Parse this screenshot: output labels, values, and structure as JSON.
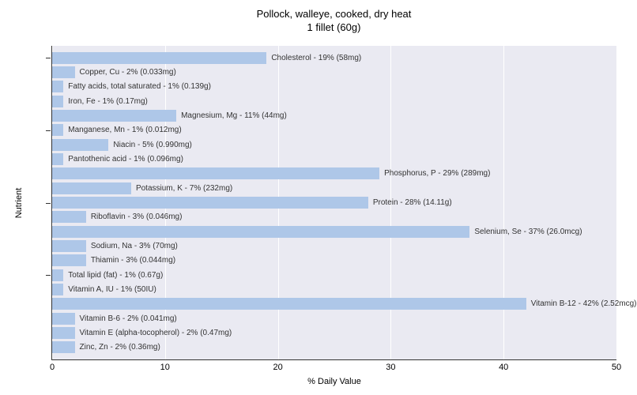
{
  "chart": {
    "type": "bar-horizontal",
    "title_line1": "Pollock, walleye, cooked, dry heat",
    "title_line2": "1 fillet (60g)",
    "title_fontsize": 13,
    "y_axis_label": "Nutrient",
    "x_axis_label": "% Daily Value",
    "axis_label_fontsize": 11,
    "tick_fontsize": 11,
    "bar_label_fontsize": 10,
    "bar_color": "#aec7e8",
    "plot_background": "#eaeaf2",
    "grid_color": "#ffffff",
    "text_color": "#333333",
    "xlim_max": 50,
    "x_ticks": [
      0,
      10,
      20,
      30,
      40,
      50
    ],
    "y_major_ticks": [
      0,
      5,
      10,
      15
    ],
    "nutrients": [
      {
        "label": "Cholesterol - 19% (58mg)",
        "value": 19
      },
      {
        "label": "Copper, Cu - 2% (0.033mg)",
        "value": 2
      },
      {
        "label": "Fatty acids, total saturated - 1% (0.139g)",
        "value": 1
      },
      {
        "label": "Iron, Fe - 1% (0.17mg)",
        "value": 1
      },
      {
        "label": "Magnesium, Mg - 11% (44mg)",
        "value": 11
      },
      {
        "label": "Manganese, Mn - 1% (0.012mg)",
        "value": 1
      },
      {
        "label": "Niacin - 5% (0.990mg)",
        "value": 5
      },
      {
        "label": "Pantothenic acid - 1% (0.096mg)",
        "value": 1
      },
      {
        "label": "Phosphorus, P - 29% (289mg)",
        "value": 29
      },
      {
        "label": "Potassium, K - 7% (232mg)",
        "value": 7
      },
      {
        "label": "Protein - 28% (14.11g)",
        "value": 28
      },
      {
        "label": "Riboflavin - 3% (0.046mg)",
        "value": 3
      },
      {
        "label": "Selenium, Se - 37% (26.0mcg)",
        "value": 37
      },
      {
        "label": "Sodium, Na - 3% (70mg)",
        "value": 3
      },
      {
        "label": "Thiamin - 3% (0.044mg)",
        "value": 3
      },
      {
        "label": "Total lipid (fat) - 1% (0.67g)",
        "value": 1
      },
      {
        "label": "Vitamin A, IU - 1% (50IU)",
        "value": 1
      },
      {
        "label": "Vitamin B-12 - 42% (2.52mcg)",
        "value": 42
      },
      {
        "label": "Vitamin B-6 - 2% (0.041mg)",
        "value": 2
      },
      {
        "label": "Vitamin E (alpha-tocopherol) - 2% (0.47mg)",
        "value": 2
      },
      {
        "label": "Zinc, Zn - 2% (0.36mg)",
        "value": 2
      }
    ]
  }
}
